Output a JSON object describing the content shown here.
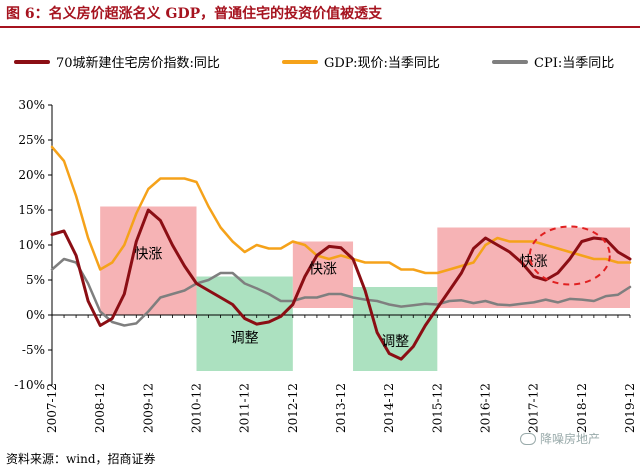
{
  "header": {
    "title": "图 6：名义房价超涨名义 GDP，普通住宅的投资价值被透支"
  },
  "footer": {
    "source": "资料来源：wind，招商证券"
  },
  "watermark": {
    "text": "降噪房地产",
    "icon": "wechat-icon"
  },
  "colors": {
    "house": "#8b0e14",
    "gdp": "#f5a21a",
    "cpi": "#7f7f7f",
    "hot_region": "#f4a0a3",
    "cool_region": "#9edcb5",
    "title": "#a6131f",
    "dashed_circle": "#e02020"
  },
  "chart_data": {
    "type": "line",
    "x": [
      "2007-12",
      "2008-03",
      "2008-06",
      "2008-09",
      "2008-12",
      "2009-03",
      "2009-06",
      "2009-09",
      "2009-12",
      "2010-03",
      "2010-06",
      "2010-09",
      "2010-12",
      "2011-03",
      "2011-06",
      "2011-09",
      "2011-12",
      "2012-03",
      "2012-06",
      "2012-09",
      "2012-12",
      "2013-03",
      "2013-06",
      "2013-09",
      "2013-12",
      "2014-03",
      "2014-06",
      "2014-09",
      "2014-12",
      "2015-03",
      "2015-06",
      "2015-09",
      "2015-12",
      "2016-03",
      "2016-06",
      "2016-09",
      "2016-12",
      "2017-03",
      "2017-06",
      "2017-09",
      "2017-12",
      "2018-03",
      "2018-06",
      "2018-09",
      "2018-12",
      "2019-03",
      "2019-06",
      "2019-09",
      "2019-12"
    ],
    "x_tick_labels": [
      "2007-12",
      "2008-12",
      "2009-12",
      "2010-12",
      "2011-12",
      "2012-12",
      "2013-12",
      "2014-12",
      "2015-12",
      "2016-12",
      "2017-12",
      "2018-12",
      "2019-12"
    ],
    "ylim": [
      -10,
      30
    ],
    "y_ticks": [
      -10,
      -5,
      0,
      5,
      10,
      15,
      20,
      25,
      30
    ],
    "y_tick_format": "percent",
    "series": [
      {
        "name": "70城新建住宅房价指数:同比",
        "values": [
          11.5,
          12.0,
          8.5,
          2.0,
          -1.5,
          -0.5,
          3.0,
          10.5,
          15.0,
          13.5,
          10.0,
          7.0,
          4.5,
          3.5,
          2.5,
          1.5,
          -0.5,
          -1.3,
          -1.0,
          -0.2,
          1.5,
          5.5,
          8.5,
          9.8,
          9.6,
          8.0,
          3.5,
          -2.5,
          -5.5,
          -6.3,
          -4.5,
          -1.5,
          1.0,
          3.5,
          6.0,
          9.5,
          11.0,
          10.0,
          9.0,
          7.5,
          5.5,
          5.0,
          6.0,
          8.0,
          10.5,
          11.0,
          10.8,
          9.0,
          8.0
        ]
      },
      {
        "name": "GDP:现价:当季同比",
        "values": [
          24.0,
          22.0,
          17.0,
          11.0,
          6.5,
          7.5,
          10.0,
          14.5,
          18.0,
          19.5,
          19.5,
          19.5,
          19.0,
          15.5,
          12.5,
          10.5,
          9.0,
          10.0,
          9.5,
          9.5,
          10.5,
          10.0,
          8.5,
          8.0,
          8.5,
          8.0,
          7.5,
          7.5,
          7.5,
          6.5,
          6.5,
          6.0,
          6.0,
          6.5,
          7.0,
          7.5,
          10.0,
          11.0,
          10.5,
          10.5,
          10.5,
          10.0,
          9.5,
          9.0,
          8.5,
          8.0,
          8.0,
          7.5,
          7.5
        ]
      },
      {
        "name": "CPI:当季同比",
        "values": [
          6.5,
          8.0,
          7.5,
          4.5,
          0.5,
          -1.0,
          -1.5,
          -1.2,
          0.5,
          2.5,
          3.0,
          3.5,
          4.5,
          5.0,
          6.0,
          6.0,
          4.5,
          3.8,
          3.0,
          2.0,
          2.0,
          2.5,
          2.5,
          3.0,
          3.0,
          2.5,
          2.2,
          2.0,
          1.5,
          1.2,
          1.4,
          1.6,
          1.5,
          2.0,
          2.1,
          1.7,
          2.0,
          1.5,
          1.4,
          1.6,
          1.8,
          2.2,
          1.8,
          2.3,
          2.2,
          2.0,
          2.7,
          2.9,
          4.0
        ]
      }
    ],
    "regions": [
      {
        "label": "快涨",
        "kind": "hot",
        "x0": "2008-12",
        "x1": "2010-12",
        "y0": 0,
        "y1": 15.5
      },
      {
        "label": "调整",
        "kind": "cool",
        "x0": "2010-12",
        "x1": "2012-12",
        "y0": -8,
        "y1": 5.5
      },
      {
        "label": "快涨",
        "kind": "hot",
        "x0": "2012-12",
        "x1": "2014-03",
        "y0": 1,
        "y1": 10.5
      },
      {
        "label": "调整",
        "kind": "cool",
        "x0": "2014-03",
        "x1": "2015-12",
        "y0": -8,
        "y1": 4
      },
      {
        "label": "快涨",
        "kind": "hot",
        "x0": "2015-12",
        "x1": "2019-12",
        "y0": 1,
        "y1": 12.5
      }
    ],
    "highlight_circle": {
      "center_x": "2018-09",
      "center_y": 8.5,
      "style": "dashed"
    }
  }
}
